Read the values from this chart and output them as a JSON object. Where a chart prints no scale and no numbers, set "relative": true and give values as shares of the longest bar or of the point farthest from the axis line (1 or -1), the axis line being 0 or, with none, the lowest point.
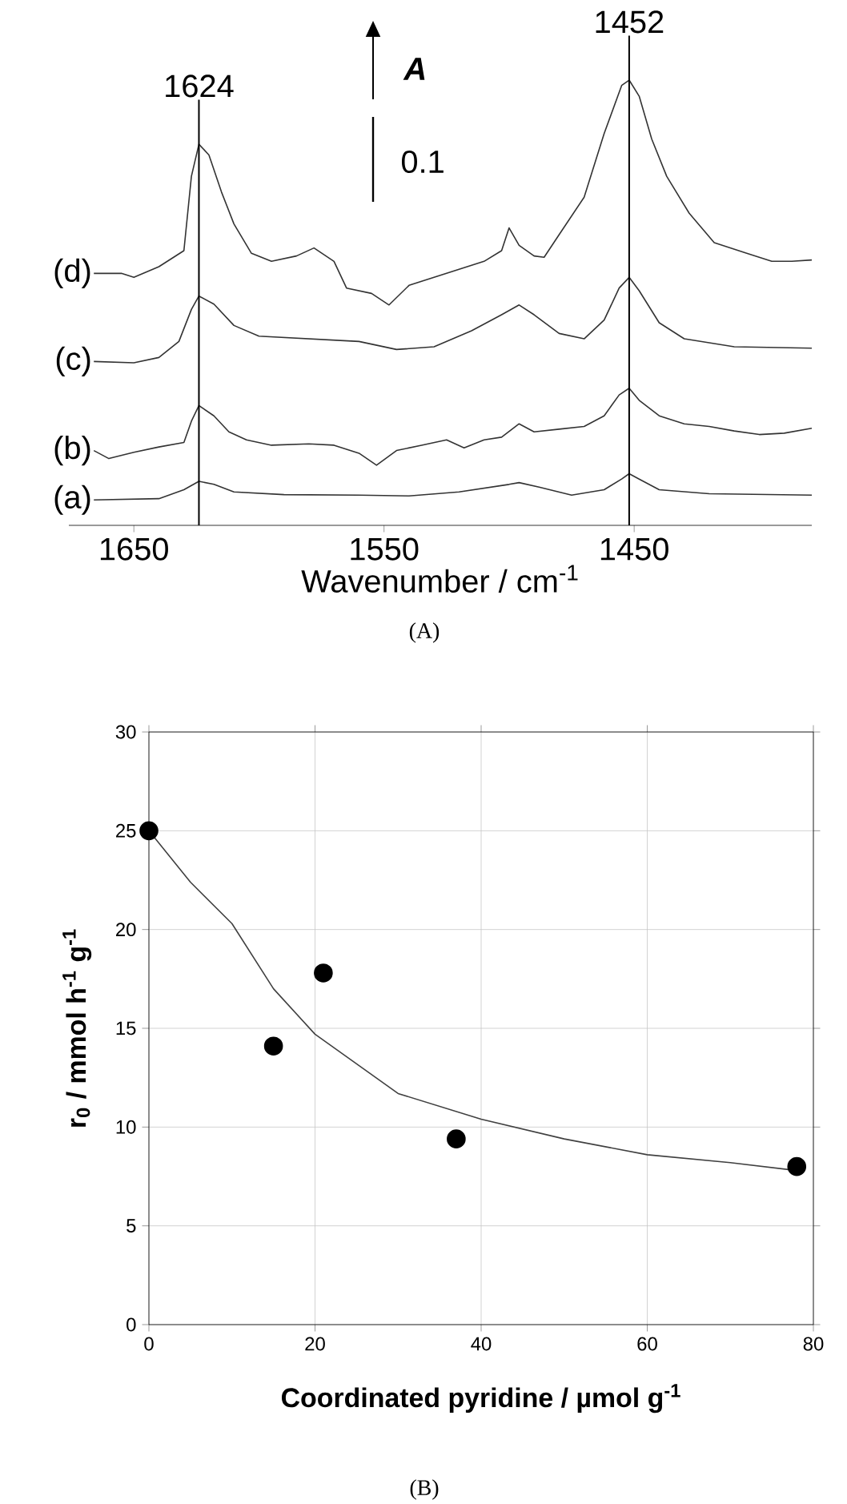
{
  "chart_data": [
    {
      "type": "line",
      "relative": true,
      "xlabel": "Wavenumber / cm$^{-1}$",
      "xlim": [
        1676,
        1379
      ],
      "xticks": [
        1650,
        1550,
        1450
      ],
      "tick_labels": "x",
      "marker": "none",
      "series": [
        {
          "name": "(a)",
          "color": "#333333",
          "x": [
            1666,
            1640,
            1630,
            1624,
            1618,
            1610,
            1590,
            1560,
            1540,
            1520,
            1500,
            1496,
            1488,
            1475,
            1462,
            1455,
            1452,
            1448,
            1440,
            1420,
            1379
          ],
          "values": [
            0.057,
            0.06,
            0.08,
            0.099,
            0.092,
            0.075,
            0.069,
            0.068,
            0.066,
            0.075,
            0.092,
            0.096,
            0.086,
            0.068,
            0.08,
            0.104,
            0.116,
            0.104,
            0.08,
            0.071,
            0.068
          ]
        },
        {
          "name": "(b)",
          "color": "#333333",
          "x": [
            1666,
            1660,
            1650,
            1640,
            1630,
            1627,
            1624,
            1618,
            1612,
            1605,
            1595,
            1580,
            1570,
            1560,
            1553,
            1545,
            1535,
            1525,
            1518,
            1510,
            1503,
            1496,
            1490,
            1480,
            1470,
            1462,
            1456,
            1452,
            1448,
            1440,
            1430,
            1420,
            1410,
            1400,
            1390,
            1379
          ],
          "values": [
            0.168,
            0.15,
            0.164,
            0.176,
            0.186,
            0.234,
            0.269,
            0.246,
            0.21,
            0.192,
            0.18,
            0.183,
            0.18,
            0.162,
            0.135,
            0.168,
            0.18,
            0.192,
            0.174,
            0.192,
            0.198,
            0.228,
            0.21,
            0.216,
            0.222,
            0.246,
            0.293,
            0.308,
            0.281,
            0.246,
            0.228,
            0.222,
            0.212,
            0.204,
            0.207,
            0.218
          ]
        },
        {
          "name": "(c)",
          "color": "#333333",
          "x": [
            1666,
            1650,
            1640,
            1632,
            1627,
            1624,
            1618,
            1610,
            1600,
            1580,
            1560,
            1545,
            1530,
            1515,
            1503,
            1496,
            1490,
            1480,
            1470,
            1462,
            1456,
            1452,
            1448,
            1440,
            1430,
            1410,
            1379
          ],
          "values": [
            0.368,
            0.365,
            0.377,
            0.413,
            0.485,
            0.515,
            0.497,
            0.449,
            0.425,
            0.419,
            0.413,
            0.395,
            0.401,
            0.437,
            0.473,
            0.495,
            0.473,
            0.431,
            0.419,
            0.461,
            0.533,
            0.557,
            0.527,
            0.455,
            0.419,
            0.401,
            0.398
          ]
        },
        {
          "name": "(d)",
          "color": "#333333",
          "x": [
            1666,
            1655,
            1650,
            1640,
            1630,
            1627,
            1624,
            1620,
            1615,
            1610,
            1603,
            1595,
            1585,
            1578,
            1570,
            1565,
            1555,
            1548,
            1540,
            1530,
            1520,
            1510,
            1503,
            1500,
            1496,
            1490,
            1486,
            1480,
            1470,
            1462,
            1455,
            1452,
            1448,
            1443,
            1437,
            1428,
            1418,
            1405,
            1395,
            1387,
            1379
          ],
          "values": [
            0.566,
            0.566,
            0.557,
            0.581,
            0.617,
            0.784,
            0.856,
            0.832,
            0.749,
            0.677,
            0.611,
            0.593,
            0.605,
            0.623,
            0.593,
            0.533,
            0.521,
            0.495,
            0.539,
            0.557,
            0.575,
            0.593,
            0.617,
            0.668,
            0.629,
            0.605,
            0.602,
            0.653,
            0.737,
            0.88,
            0.988,
            1.0,
            0.964,
            0.868,
            0.784,
            0.701,
            0.635,
            0.611,
            0.593,
            0.593,
            0.596
          ]
        }
      ],
      "ref_lines": [
        {
          "axis": "x",
          "value": 1624,
          "label": "1624"
        },
        {
          "axis": "x",
          "value": 1452,
          "label": "1452"
        }
      ],
      "annotations": [
        "A",
        "0.1",
        "(A)"
      ]
    },
    {
      "type": "scatter",
      "xlabel": "Coordinated pyridine / µmol g$^{-1}$",
      "ylabel": "r$_{0}$ / mmol h$^{-1}$ g$^{-1}$",
      "xlim": [
        0,
        80
      ],
      "ylim": [
        0,
        30
      ],
      "xticks": [
        0,
        20,
        40,
        60,
        80
      ],
      "yticks": [
        0,
        5,
        10,
        15,
        20,
        25,
        30
      ],
      "grid": true,
      "series": [
        {
          "type": "scatter",
          "marker": "circle",
          "color": "#000000",
          "x": [
            0,
            15,
            21,
            37,
            78
          ],
          "values": [
            25,
            14.1,
            17.8,
            9.4,
            8.0
          ]
        },
        {
          "type": "line",
          "marker": "none",
          "color": "#404040",
          "x": [
            0,
            5,
            10,
            15,
            20,
            30,
            40,
            50,
            60,
            70,
            78
          ],
          "values": [
            25,
            22.4,
            20.3,
            17.0,
            14.7,
            11.7,
            10.4,
            9.4,
            8.6,
            8.2,
            7.8
          ]
        }
      ],
      "annotations": [
        "(B)"
      ]
    }
  ]
}
